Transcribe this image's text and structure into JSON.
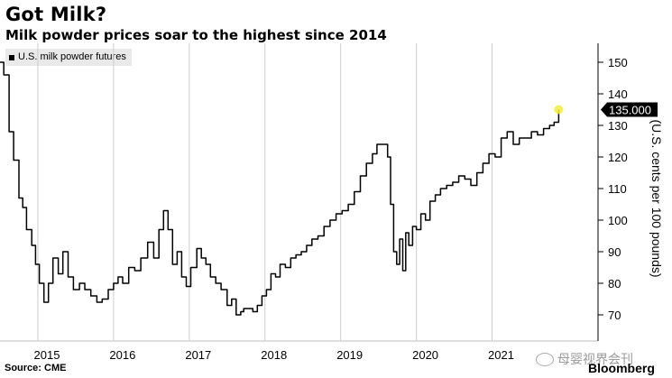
{
  "title": "Got Milk?",
  "subtitle": "Milk powder prices soar to the highest since 2014",
  "source": "Source: CME",
  "brand": "Bloomberg",
  "watermark": "母婴视界会刊",
  "chart_data": {
    "type": "line",
    "title": "Got Milk?",
    "subtitle": "Milk powder prices soar to the highest since 2014",
    "xlabel": "",
    "ylabel": "(U.S. cents per 100 pounds)",
    "legend": "U.S. milk powder futures",
    "legend_position": "top-left",
    "xlim": [
      2014.5,
      2022.4
    ],
    "ylim": [
      64,
      156
    ],
    "yticks": [
      70,
      80,
      90,
      100,
      110,
      120,
      130,
      140,
      150
    ],
    "xticks": [
      {
        "value": 2015.0,
        "label": "2015"
      },
      {
        "value": 2016.0,
        "label": "2016"
      },
      {
        "value": 2017.0,
        "label": "2017"
      },
      {
        "value": 2018.0,
        "label": "2018"
      },
      {
        "value": 2019.0,
        "label": "2019"
      },
      {
        "value": 2020.0,
        "label": "2020"
      },
      {
        "value": 2021.0,
        "label": "2021"
      }
    ],
    "grid": true,
    "last_value_label": "135.000",
    "series": [
      {
        "name": "U.S. milk powder futures",
        "x": [
          2014.5,
          2014.55,
          2014.62,
          2014.68,
          2014.75,
          2014.8,
          2014.85,
          2014.92,
          2014.97,
          2015.02,
          2015.08,
          2015.14,
          2015.2,
          2015.27,
          2015.33,
          2015.4,
          2015.47,
          2015.55,
          2015.62,
          2015.7,
          2015.78,
          2015.85,
          2015.93,
          2016.0,
          2016.06,
          2016.12,
          2016.2,
          2016.28,
          2016.36,
          2016.45,
          2016.53,
          2016.6,
          2016.66,
          2016.72,
          2016.78,
          2016.84,
          2016.9,
          2016.96,
          2017.02,
          2017.1,
          2017.16,
          2017.22,
          2017.28,
          2017.35,
          2017.42,
          2017.5,
          2017.56,
          2017.62,
          2017.68,
          2017.72,
          2017.78,
          2017.84,
          2017.9,
          2017.96,
          2018.02,
          2018.08,
          2018.14,
          2018.2,
          2018.27,
          2018.34,
          2018.41,
          2018.48,
          2018.55,
          2018.62,
          2018.7,
          2018.78,
          2018.86,
          2018.94,
          2019.02,
          2019.1,
          2019.18,
          2019.26,
          2019.34,
          2019.42,
          2019.48,
          2019.53,
          2019.58,
          2019.62,
          2019.66,
          2019.7,
          2019.74,
          2019.78,
          2019.82,
          2019.86,
          2019.9,
          2019.95,
          2020.0,
          2020.06,
          2020.12,
          2020.18,
          2020.25,
          2020.32,
          2020.4,
          2020.48,
          2020.56,
          2020.64,
          2020.72,
          2020.8,
          2020.88,
          2020.96,
          2021.04,
          2021.12,
          2021.2,
          2021.28,
          2021.36,
          2021.44,
          2021.52,
          2021.6,
          2021.68,
          2021.76,
          2021.82,
          2021.88
        ],
        "values": [
          150,
          146,
          128,
          119,
          107,
          104,
          97,
          92,
          86,
          80,
          74,
          80,
          88,
          83,
          90,
          82,
          78,
          80,
          78,
          76,
          74,
          75,
          78,
          80,
          82,
          80,
          85,
          84,
          88,
          93,
          88,
          97,
          103,
          97,
          86,
          90,
          82,
          79,
          85,
          91,
          88,
          86,
          82,
          80,
          78,
          73,
          75,
          70,
          71,
          72,
          72,
          71,
          73,
          76,
          78,
          83,
          82,
          86,
          85,
          88,
          89,
          90,
          92,
          94,
          95,
          98,
          100,
          102,
          103,
          105,
          109,
          114,
          118,
          121,
          124,
          124,
          124,
          120,
          105,
          90,
          86,
          94,
          84,
          96,
          92,
          98,
          97,
          102,
          100,
          106,
          108,
          110,
          111,
          112,
          114,
          113,
          111,
          115,
          118,
          121,
          120,
          126,
          128,
          124,
          126,
          126,
          128,
          127,
          129,
          130,
          131,
          135
        ]
      }
    ]
  }
}
